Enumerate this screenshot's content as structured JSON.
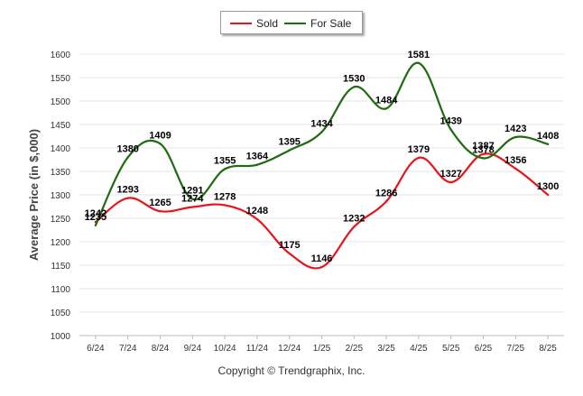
{
  "legend": {
    "sold_label": "Sold",
    "for_sale_label": "For Sale"
  },
  "copyright": "Copyright © Trendgraphix, Inc.",
  "chart_data": {
    "type": "line",
    "title": "",
    "xlabel": "",
    "ylabel": "Average Price (in $,000)",
    "categories": [
      "6/24",
      "7/24",
      "8/24",
      "9/24",
      "10/24",
      "11/24",
      "12/24",
      "1/25",
      "2/25",
      "3/25",
      "4/25",
      "5/25",
      "6/25",
      "7/25",
      "8/25"
    ],
    "ylim": [
      1000,
      1600
    ],
    "yticks": [
      "1000",
      "1050",
      "1100",
      "1150",
      "1200",
      "1250",
      "1300",
      "1350",
      "1400",
      "1450",
      "1500",
      "1550",
      "1600"
    ],
    "grid": true,
    "legend_position": "top-center",
    "series": [
      {
        "name": "Sold",
        "color": "#e8141b",
        "values": [
          1242,
          1293,
          1265,
          1274,
          1278,
          1248,
          1175,
          1146,
          1232,
          1286,
          1379,
          1327,
          1387,
          1356,
          1300
        ],
        "labels": [
          "1242",
          "1293",
          "1265",
          "1274",
          "1278",
          "1248",
          "1175",
          "1146",
          "1232",
          "1286",
          "1379",
          "1327",
          "1387",
          "1356",
          "1300"
        ]
      },
      {
        "name": "For Sale",
        "color": "#1f6b10",
        "values": [
          1235,
          1380,
          1409,
          1291,
          1355,
          1364,
          1395,
          1434,
          1530,
          1484,
          1581,
          1439,
          1378,
          1423,
          1408
        ],
        "labels": [
          "1235",
          "1380",
          "1409",
          "1291",
          "1355",
          "1364",
          "1395",
          "1434",
          "1530",
          "1484",
          "1581",
          "1439",
          "1378",
          "1423",
          "1408"
        ]
      }
    ]
  }
}
